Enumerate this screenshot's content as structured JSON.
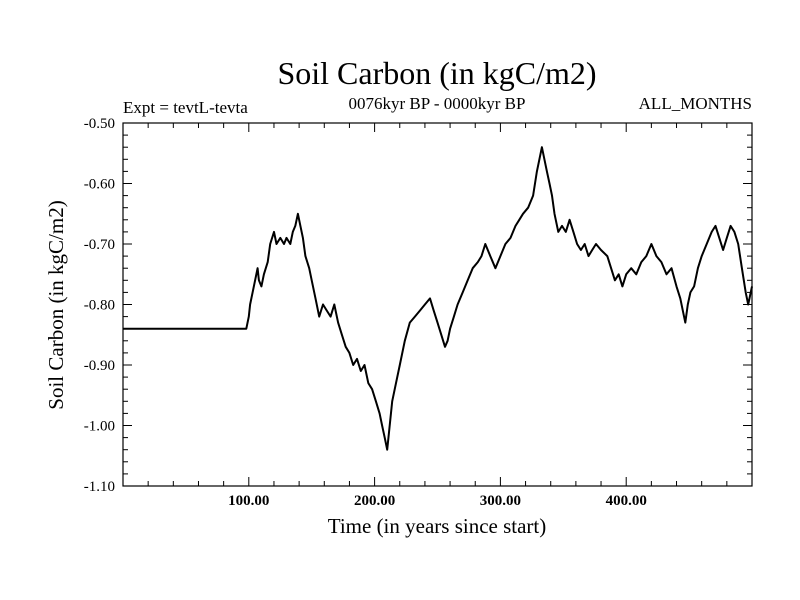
{
  "chart_data": {
    "type": "line",
    "title": "Soil Carbon (in kgC/m2)",
    "subtitle": "0076kyr BP - 0000kyr BP",
    "left_label": "Expt = tevtL-tevta",
    "right_label": "ALL_MONTHS",
    "xlabel": "Time (in years since start)",
    "ylabel": "Soil Carbon (in kgC/m2)",
    "xlim": [
      0,
      500
    ],
    "ylim": [
      -1.1,
      -0.5
    ],
    "x_ticks": [
      100,
      200,
      300,
      400
    ],
    "x_tick_labels": [
      "100.00",
      "200.00",
      "300.00",
      "400.00"
    ],
    "y_ticks": [
      -0.5,
      -0.6,
      -0.7,
      -0.8,
      -0.9,
      -1.0,
      -1.1
    ],
    "y_tick_labels": [
      "-0.50",
      "-0.60",
      "-0.70",
      "-0.80",
      "-0.90",
      "-1.00",
      "-1.10"
    ],
    "grid": false,
    "line_color": "#000000",
    "series": [
      {
        "x": [
          0,
          98,
          100,
          101,
          103,
          105,
          107,
          108,
          110,
          112,
          115,
          117,
          120,
          122,
          125,
          128,
          130,
          133,
          135,
          137,
          139,
          141,
          143,
          145,
          148,
          150,
          153,
          156,
          159,
          162,
          165,
          168,
          171,
          174,
          177,
          180,
          183,
          186,
          189,
          192,
          195,
          198,
          201,
          204,
          206,
          208,
          210,
          212,
          214,
          217,
          220,
          224,
          228,
          232,
          236,
          240,
          244,
          247,
          250,
          253,
          256,
          258,
          260,
          263,
          266,
          270,
          274,
          278,
          282,
          285,
          288,
          292,
          296,
          300,
          304,
          308,
          312,
          315,
          318,
          322,
          326,
          329,
          331,
          333,
          335,
          337,
          339,
          341,
          343,
          346,
          349,
          352,
          355,
          358,
          361,
          364,
          367,
          370,
          373,
          376,
          380,
          385,
          388,
          391,
          394,
          397,
          400,
          404,
          408,
          412,
          416,
          420,
          424,
          428,
          432,
          436,
          440,
          443,
          445,
          447,
          449,
          451,
          454,
          457,
          460,
          464,
          468,
          471,
          474,
          477,
          480,
          483,
          486,
          489,
          492,
          495,
          497,
          500
        ],
        "y": [
          -0.84,
          -0.84,
          -0.82,
          -0.8,
          -0.78,
          -0.76,
          -0.74,
          -0.76,
          -0.77,
          -0.75,
          -0.73,
          -0.7,
          -0.68,
          -0.7,
          -0.69,
          -0.7,
          -0.69,
          -0.7,
          -0.68,
          -0.67,
          -0.65,
          -0.67,
          -0.69,
          -0.72,
          -0.74,
          -0.76,
          -0.79,
          -0.82,
          -0.8,
          -0.81,
          -0.82,
          -0.8,
          -0.83,
          -0.85,
          -0.87,
          -0.88,
          -0.9,
          -0.89,
          -0.91,
          -0.9,
          -0.93,
          -0.94,
          -0.96,
          -0.98,
          -1.0,
          -1.02,
          -1.04,
          -1.0,
          -0.96,
          -0.93,
          -0.9,
          -0.86,
          -0.83,
          -0.82,
          -0.81,
          -0.8,
          -0.79,
          -0.81,
          -0.83,
          -0.85,
          -0.87,
          -0.86,
          -0.84,
          -0.82,
          -0.8,
          -0.78,
          -0.76,
          -0.74,
          -0.73,
          -0.72,
          -0.7,
          -0.72,
          -0.74,
          -0.72,
          -0.7,
          -0.69,
          -0.67,
          -0.66,
          -0.65,
          -0.64,
          -0.62,
          -0.58,
          -0.56,
          -0.54,
          -0.56,
          -0.58,
          -0.6,
          -0.62,
          -0.65,
          -0.68,
          -0.67,
          -0.68,
          -0.66,
          -0.68,
          -0.7,
          -0.71,
          -0.7,
          -0.72,
          -0.71,
          -0.7,
          -0.71,
          -0.72,
          -0.74,
          -0.76,
          -0.75,
          -0.77,
          -0.75,
          -0.74,
          -0.75,
          -0.73,
          -0.72,
          -0.7,
          -0.72,
          -0.73,
          -0.75,
          -0.74,
          -0.77,
          -0.79,
          -0.81,
          -0.83,
          -0.8,
          -0.78,
          -0.77,
          -0.74,
          -0.72,
          -0.7,
          -0.68,
          -0.67,
          -0.69,
          -0.71,
          -0.69,
          -0.67,
          -0.68,
          -0.7,
          -0.74,
          -0.78,
          -0.8,
          -0.77
        ]
      }
    ]
  }
}
